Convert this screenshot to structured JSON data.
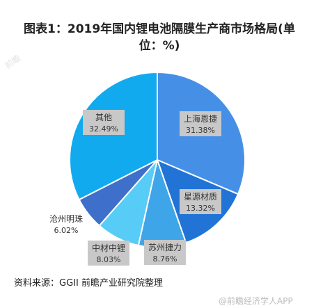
{
  "title": "图表1：2019年国内锂电池隔膜生产商市场格局(单位：%)",
  "source": "资料来源：GGII 前瞻产业研究院整理",
  "watermark": "@前瞻经济学人APP",
  "logo_text": "前瞻",
  "chart_data": {
    "type": "pie",
    "title": "图表1：2019年国内锂电池隔膜生产商市场格局(单位：%)",
    "unit": "%",
    "labels": [
      "上海恩捷",
      "星源材质",
      "苏州捷力",
      "中材中锂",
      "沧州明珠",
      "其他"
    ],
    "values": [
      31.38,
      13.32,
      8.76,
      8.03,
      6.02,
      32.49
    ],
    "value_labels": [
      "31.38%",
      "13.32%",
      "8.76%",
      "8.03%",
      "6.02%",
      "32.49%"
    ],
    "colors": [
      "#4590e6",
      "#2174d6",
      "#3fa5e9",
      "#56ccf6",
      "#3d6fcb",
      "#11aaee"
    ],
    "start_angle_deg": 0,
    "direction": "clockwise"
  }
}
